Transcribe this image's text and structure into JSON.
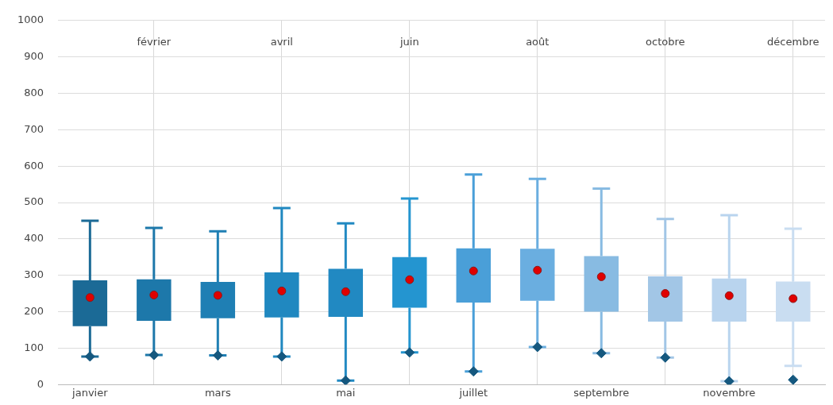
{
  "chart_data": {
    "type": "box",
    "categories": [
      "janvier",
      "février",
      "mars",
      "avril",
      "mai",
      "juin",
      "juillet",
      "août",
      "septembre",
      "octobre",
      "novembre",
      "décembre"
    ],
    "ylim": [
      0,
      1000
    ],
    "yticks": [
      0,
      100,
      200,
      300,
      400,
      500,
      600,
      700,
      800,
      900,
      1000
    ],
    "grid": true,
    "series": [
      {
        "type": "box",
        "colors": [
          "#1b6a96",
          "#1d78aa",
          "#1f7fb4",
          "#2088c0",
          "#2189c2",
          "#2495d0",
          "#4a9fd8",
          "#6aaee0",
          "#88bbe2",
          "#a2c6e6",
          "#b9d4ee",
          "#c9ddf1"
        ],
        "boxes": [
          {
            "low": 77,
            "q1": 160,
            "q3": 286,
            "high": 450,
            "mean": 239
          },
          {
            "low": 81,
            "q1": 175,
            "q3": 289,
            "high": 430,
            "mean": 246
          },
          {
            "low": 80,
            "q1": 182,
            "q3": 282,
            "high": 421,
            "mean": 245
          },
          {
            "low": 77,
            "q1": 184,
            "q3": 308,
            "high": 485,
            "mean": 257
          },
          {
            "low": 11,
            "q1": 186,
            "q3": 318,
            "high": 443,
            "mean": 255
          },
          {
            "low": 88,
            "q1": 211,
            "q3": 350,
            "high": 511,
            "mean": 288
          },
          {
            "low": 36,
            "q1": 225,
            "q3": 374,
            "high": 577,
            "mean": 312
          },
          {
            "low": 103,
            "q1": 230,
            "q3": 373,
            "high": 565,
            "mean": 314
          },
          {
            "low": 86,
            "q1": 200,
            "q3": 353,
            "high": 538,
            "mean": 296
          },
          {
            "low": 74,
            "q1": 173,
            "q3": 297,
            "high": 455,
            "mean": 250
          },
          {
            "low": 9,
            "q1": 173,
            "q3": 291,
            "high": 465,
            "mean": 244
          },
          {
            "low": 51,
            "q1": 173,
            "q3": 283,
            "high": 428,
            "mean": 236
          }
        ]
      },
      {
        "type": "scatter",
        "color": "#15587f",
        "marker": "diamond",
        "x": [
          "janvier",
          "février",
          "mars",
          "avril",
          "mai",
          "juin",
          "juillet",
          "août",
          "septembre",
          "octobre",
          "novembre",
          "décembre"
        ],
        "values": [
          77,
          81,
          80,
          77,
          11,
          88,
          36,
          103,
          86,
          74,
          9,
          13
        ]
      }
    ]
  }
}
